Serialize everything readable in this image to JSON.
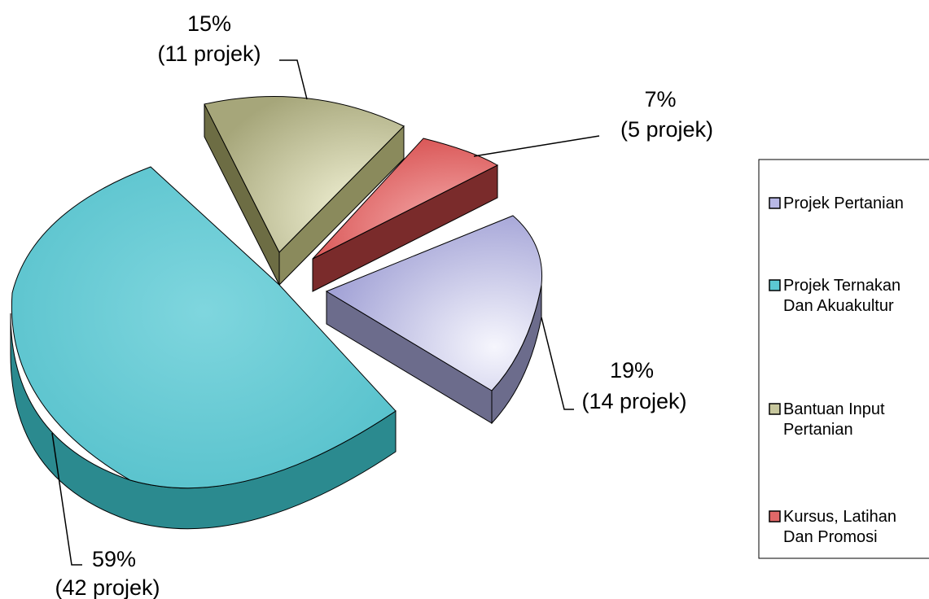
{
  "chart_data": {
    "type": "pie",
    "title": "",
    "three_d": true,
    "exploded": true,
    "categories": [
      "Projek Pertanian",
      "Projek Ternakan Dan Akuakultur",
      "Bantuan Input Pertanian",
      "Kursus, Latihan Dan Promosi"
    ],
    "values": [
      14,
      42,
      11,
      5
    ],
    "percent_labels": [
      "19%",
      "59%",
      "15%",
      "7%"
    ],
    "count_labels": [
      "(14 projek)",
      "(42 projek)",
      "(11 projek)",
      "(5 projek)"
    ],
    "legend": {
      "position": "right",
      "entries": [
        {
          "lines": [
            "Projek Pertanian"
          ]
        },
        {
          "lines": [
            "Projek Ternakan",
            "Dan Akuakultur"
          ]
        },
        {
          "lines": [
            "Bantuan Input",
            "Pertanian"
          ]
        },
        {
          "lines": [
            "Kursus, Latihan",
            "Dan Promosi"
          ]
        }
      ]
    },
    "colors": [
      "#b8b8e6",
      "#5cc8d2",
      "#c7c79d",
      "#e06868"
    ],
    "side_colors": [
      "#6c6c8c",
      "#2b8a8f",
      "#6d6d44",
      "#7a2b2b"
    ]
  }
}
